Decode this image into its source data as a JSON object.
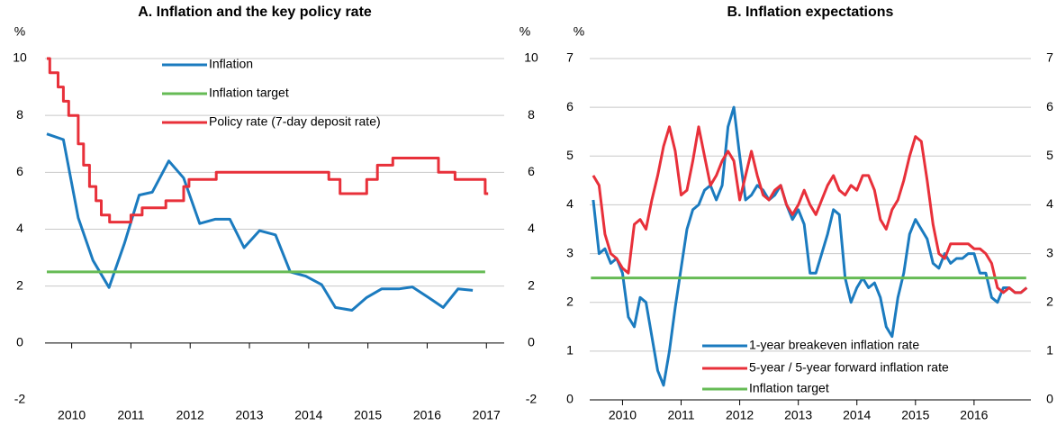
{
  "chart_data": [
    {
      "type": "line",
      "title": "A. Inflation and the key policy rate",
      "ylabel": "%",
      "y2label": "%",
      "xlim": [
        2009.55,
        2017.3
      ],
      "xticks": [
        2010,
        2011,
        2012,
        2013,
        2014,
        2015,
        2016,
        2017
      ],
      "ylim": [
        -2,
        10
      ],
      "yticks": [
        -2,
        0,
        2,
        4,
        6,
        8,
        10
      ],
      "y2lim": [
        -2,
        10
      ],
      "y2ticks": [
        -2,
        0,
        2,
        4,
        6,
        8,
        10
      ],
      "grid": true,
      "legend": "top-center",
      "series": [
        {
          "name": "Inflation",
          "color": "#1b7bbf",
          "x": [
            2009.58,
            2009.86,
            2010.11,
            2010.36,
            2010.63,
            2010.89,
            2011.14,
            2011.36,
            2011.64,
            2011.89,
            2012.16,
            2012.42,
            2012.67,
            2012.91,
            2013.17,
            2013.44,
            2013.69,
            2013.95,
            2014.22,
            2014.45,
            2014.73,
            2014.98,
            2015.23,
            2015.52,
            2015.75,
            2016.02,
            2016.27,
            2016.52,
            2016.77
          ],
          "values": [
            7.35,
            7.15,
            4.4,
            2.9,
            1.95,
            3.5,
            5.2,
            5.3,
            6.4,
            5.8,
            4.2,
            4.35,
            4.35,
            3.35,
            3.95,
            3.8,
            2.5,
            2.35,
            2.05,
            1.25,
            1.15,
            1.6,
            1.9,
            1.9,
            1.97,
            1.6,
            1.25,
            1.9,
            1.85
          ]
        },
        {
          "name": "Inflation target",
          "color": "#66bb55",
          "x": [
            2009.58,
            2016.98
          ],
          "values": [
            2.5,
            2.5
          ]
        },
        {
          "name": "Policy rate (7-day deposit rate)",
          "color": "#e8303a",
          "x": [
            2009.58,
            2009.63,
            2009.63,
            2009.77,
            2009.77,
            2009.86,
            2009.86,
            2009.95,
            2009.95,
            2010.11,
            2010.11,
            2010.2,
            2010.2,
            2010.3,
            2010.3,
            2010.41,
            2010.41,
            2010.5,
            2010.5,
            2010.64,
            2010.64,
            2011.0,
            2011.0,
            2011.19,
            2011.19,
            2011.59,
            2011.59,
            2011.89,
            2011.89,
            2011.98,
            2011.98,
            2012.44,
            2012.44,
            2014.34,
            2014.34,
            2014.53,
            2014.53,
            2014.98,
            2014.98,
            2015.16,
            2015.16,
            2015.42,
            2015.42,
            2016.19,
            2016.19,
            2016.47,
            2016.47,
            2016.98,
            2016.98,
            2017.03
          ],
          "values": [
            10,
            10,
            9.5,
            9.5,
            9.0,
            9.0,
            8.5,
            8.5,
            8.0,
            8.0,
            7.0,
            7.0,
            6.25,
            6.25,
            5.5,
            5.5,
            5.0,
            5.0,
            4.5,
            4.5,
            4.25,
            4.25,
            4.5,
            4.5,
            4.75,
            4.75,
            5.0,
            5.0,
            5.5,
            5.5,
            5.75,
            5.75,
            6.0,
            6.0,
            5.75,
            5.75,
            5.25,
            5.25,
            5.75,
            5.75,
            6.25,
            6.25,
            6.5,
            6.5,
            6.0,
            6.0,
            5.75,
            5.75,
            5.25,
            5.25
          ]
        }
      ]
    },
    {
      "type": "line",
      "title": "B. Inflation expectations",
      "ylabel": "%",
      "xlim": [
        2009.44,
        2016.97
      ],
      "xticks": [
        2010,
        2011,
        2012,
        2013,
        2014,
        2015,
        2016
      ],
      "ylim": [
        0,
        7
      ],
      "yticks": [
        0,
        1,
        2,
        3,
        4,
        5,
        6,
        7
      ],
      "y2lim": [
        0,
        7
      ],
      "y2ticks": [
        0,
        1,
        2,
        3,
        4,
        5,
        6,
        7
      ],
      "grid": true,
      "legend": "bottom-center",
      "x": [
        2009.5,
        2009.6,
        2009.7,
        2009.8,
        2009.9,
        2010.0,
        2010.1,
        2010.2,
        2010.3,
        2010.4,
        2010.5,
        2010.6,
        2010.7,
        2010.8,
        2010.9,
        2011.0,
        2011.1,
        2011.2,
        2011.3,
        2011.4,
        2011.5,
        2011.6,
        2011.7,
        2011.8,
        2011.9,
        2012.0,
        2012.1,
        2012.2,
        2012.3,
        2012.4,
        2012.5,
        2012.6,
        2012.7,
        2012.8,
        2012.9,
        2013.0,
        2013.1,
        2013.2,
        2013.3,
        2013.4,
        2013.5,
        2013.6,
        2013.7,
        2013.8,
        2013.9,
        2014.0,
        2014.1,
        2014.2,
        2014.3,
        2014.4,
        2014.5,
        2014.6,
        2014.7,
        2014.8,
        2014.9,
        2015.0,
        2015.1,
        2015.2,
        2015.3,
        2015.4,
        2015.5,
        2015.6,
        2015.7,
        2015.8,
        2015.9,
        2016.0,
        2016.1,
        2016.2,
        2016.3,
        2016.4,
        2016.5,
        2016.6,
        2016.7,
        2016.8,
        2016.9
      ],
      "series": [
        {
          "name": "1-year breakeven inflation rate",
          "color": "#1b7bbf",
          "values": [
            4.1,
            3.0,
            3.1,
            2.8,
            2.9,
            2.6,
            1.7,
            1.5,
            2.1,
            2.0,
            1.3,
            0.6,
            0.3,
            1.0,
            1.9,
            2.7,
            3.5,
            3.9,
            4.0,
            4.3,
            4.4,
            4.1,
            4.4,
            5.6,
            6.0,
            5.0,
            4.1,
            4.2,
            4.4,
            4.3,
            4.1,
            4.2,
            4.4,
            4.0,
            3.7,
            3.9,
            3.6,
            2.6,
            2.6,
            3.0,
            3.4,
            3.9,
            3.8,
            2.5,
            2.0,
            2.3,
            2.5,
            2.3,
            2.4,
            2.1,
            1.5,
            1.3,
            2.1,
            2.6,
            3.4,
            3.7,
            3.5,
            3.3,
            2.8,
            2.7,
            3.0,
            2.8,
            2.9,
            2.9,
            3.0,
            3.0,
            2.6,
            2.6,
            2.1,
            2.0,
            2.3,
            2.3,
            2.2,
            2.2,
            2.3
          ]
        },
        {
          "name": "5-year / 5-year forward inflation rate",
          "color": "#e8303a",
          "values": [
            4.6,
            4.4,
            3.4,
            3.0,
            2.9,
            2.7,
            2.6,
            3.6,
            3.7,
            3.5,
            4.1,
            4.6,
            5.2,
            5.6,
            5.1,
            4.2,
            4.3,
            4.9,
            5.6,
            5.0,
            4.4,
            4.6,
            4.9,
            5.1,
            4.9,
            4.1,
            4.6,
            5.1,
            4.6,
            4.2,
            4.1,
            4.3,
            4.4,
            4.0,
            3.8,
            4.0,
            4.3,
            4.0,
            3.8,
            4.1,
            4.4,
            4.6,
            4.3,
            4.2,
            4.4,
            4.3,
            4.6,
            4.6,
            4.3,
            3.7,
            3.5,
            3.9,
            4.1,
            4.5,
            5.0,
            5.4,
            5.3,
            4.5,
            3.6,
            3.0,
            2.9,
            3.2,
            3.2,
            3.2,
            3.2,
            3.1,
            3.1,
            3.0,
            2.8,
            2.3,
            2.2,
            2.3,
            2.2,
            2.2,
            2.3
          ]
        },
        {
          "name": "Inflation target",
          "color": "#66bb55",
          "x": [
            2009.46,
            2016.89
          ],
          "values": [
            2.5,
            2.5
          ]
        }
      ]
    }
  ]
}
